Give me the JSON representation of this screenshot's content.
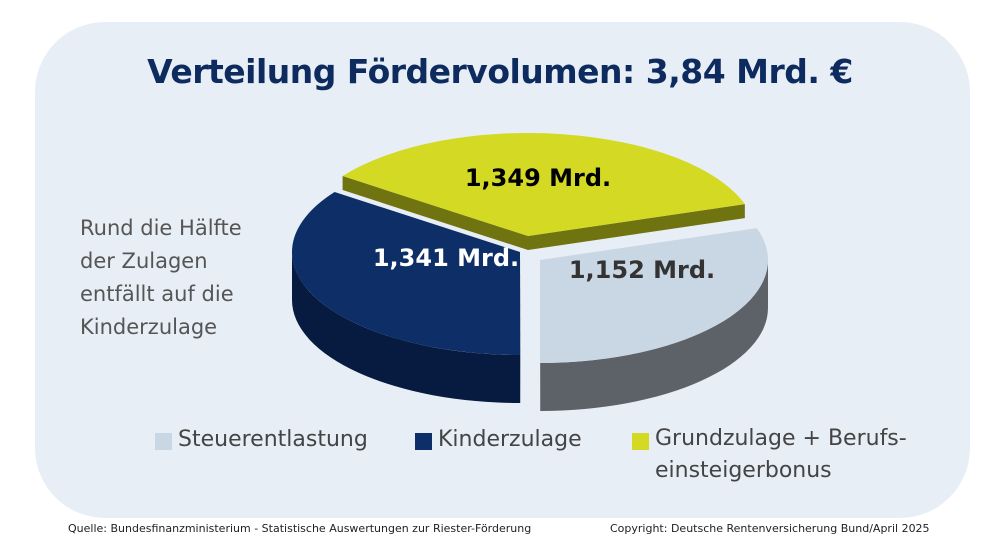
{
  "chart_data": {
    "type": "pie",
    "title": "Verteilung Fördervolumen: 3,84 Mrd. €",
    "slices": [
      {
        "name": "Steuerentlastung",
        "value": 1.152,
        "label": "1,152 Mrd.",
        "color": "#c9d6e3",
        "side_color": "#5d6168",
        "label_color": "#333333"
      },
      {
        "name": "Kinderzulage",
        "value": 1.341,
        "label": "1,341 Mrd.",
        "color": "#0d2e66",
        "side_color": "#061b3f",
        "label_color": "#ffffff"
      },
      {
        "name": "Grundzulage + Berufs-einsteigerbonus",
        "value": 1.349,
        "label": "1,349 Mrd.",
        "color": "#d4d923",
        "side_color": "#707410",
        "label_color": "#111111"
      }
    ],
    "legend_placement": "bottom",
    "legend": [
      "Steuerentlastung",
      "Kinderzulage",
      "Grundzulage + Berufs-",
      "einsteigerbonus"
    ]
  },
  "annotation": [
    "Rund die Hälfte",
    "der Zulagen",
    "entfällt auf die",
    "Kinderzulage"
  ],
  "footer": {
    "source": "Quelle: Bundesfinanzministerium - Statistische Auswertungen zur Riester-Förderung",
    "copyright": "Copyright: Deutsche Rentenversicherung Bund/April 2025"
  }
}
